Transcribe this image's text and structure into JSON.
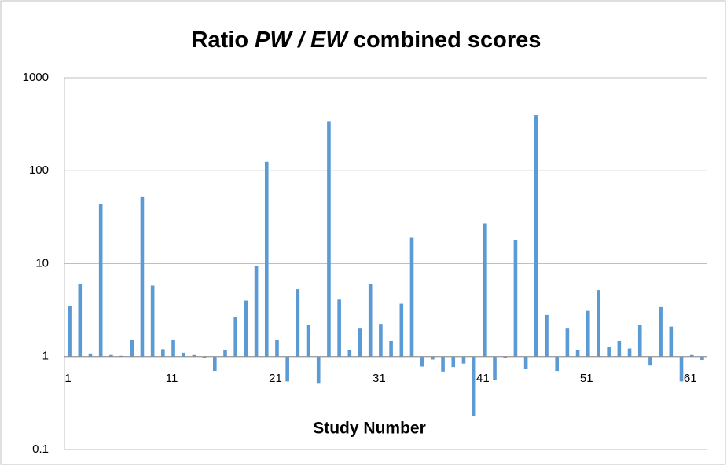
{
  "chart_data": {
    "type": "bar",
    "title": [
      "Ratio ",
      "PW / EW",
      " combined scores"
    ],
    "x_label": "Study Number",
    "categories": [
      1,
      null,
      null,
      null,
      null,
      null,
      null,
      null,
      null,
      null,
      11,
      null,
      null,
      null,
      null,
      null,
      null,
      null,
      null,
      null,
      21,
      null,
      null,
      null,
      null,
      null,
      null,
      null,
      null,
      null,
      31,
      null,
      null,
      null,
      null,
      null,
      null,
      null,
      null,
      null,
      41,
      null,
      null,
      null,
      null,
      null,
      null,
      null,
      null,
      null,
      51,
      null,
      null,
      null,
      null,
      null,
      null,
      null,
      null,
      null,
      61,
      null
    ],
    "values": [
      3.5,
      6.0,
      1.08,
      44,
      1.04,
      1.02,
      1.5,
      52,
      5.8,
      1.2,
      1.5,
      1.1,
      1.04,
      0.96,
      0.7,
      1.17,
      2.65,
      4.0,
      9.4,
      125,
      1.5,
      0.54,
      5.3,
      2.2,
      0.51,
      340,
      4.1,
      1.17,
      2.0,
      6.0,
      2.25,
      1.47,
      3.7,
      19,
      0.78,
      0.93,
      0.69,
      0.77,
      0.84,
      0.23,
      27,
      0.56,
      0.97,
      18,
      0.74,
      400,
      2.8,
      0.7,
      2.0,
      1.18,
      3.1,
      5.2,
      1.28,
      1.47,
      1.22,
      2.2,
      0.8,
      3.4,
      2.1,
      0.54,
      1.04,
      0.92
    ],
    "color": "#5b9bd5",
    "log_scale": true,
    "x_axis_crosses": 1,
    "ylim": [
      0.1,
      1000
    ],
    "yticks": [
      0.1,
      1,
      10,
      100,
      1000
    ],
    "grid": true
  }
}
